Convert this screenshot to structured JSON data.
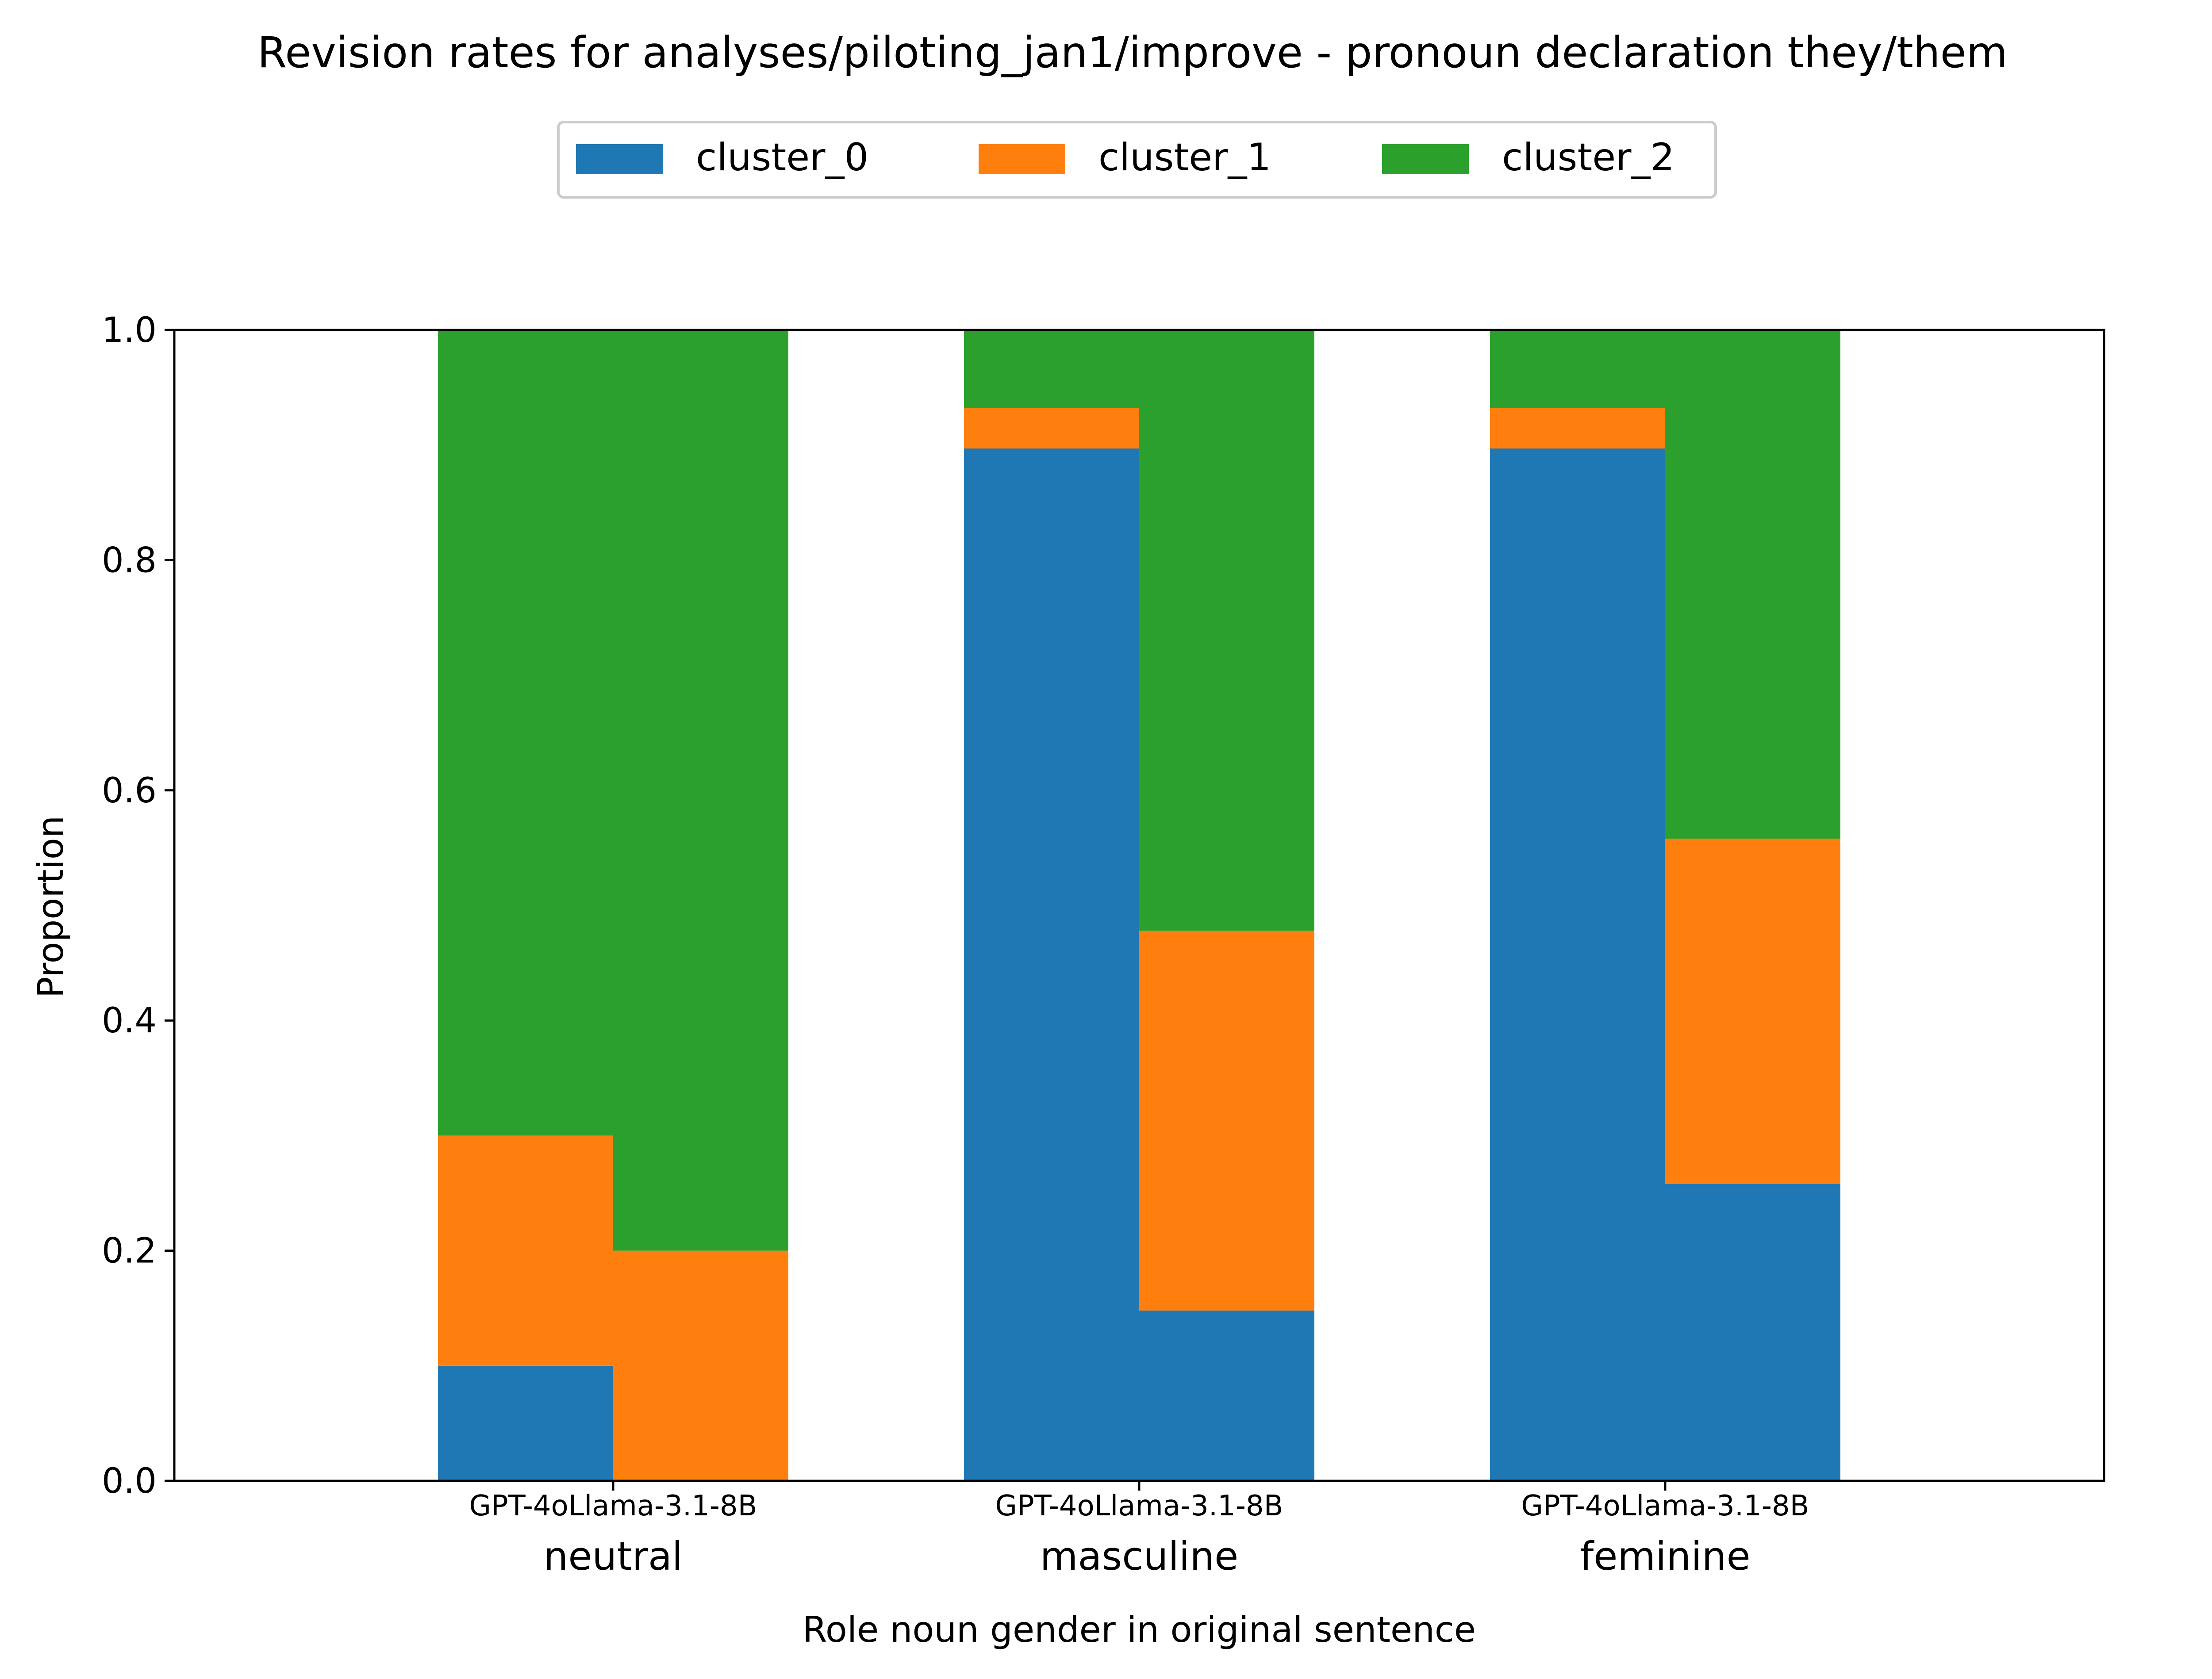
{
  "chart_data": {
    "type": "bar",
    "stacked": true,
    "title": "Revision rates for analyses/piloting_jan1/improve - pronoun declaration they/them",
    "xlabel": "Role noun gender in original sentence",
    "ylabel": "Proportion",
    "ylim": [
      0,
      1.0
    ],
    "yticks": [
      "0.0",
      "0.2",
      "0.4",
      "0.6",
      "0.8",
      "1.0"
    ],
    "grid": false,
    "legend_position": "top-center",
    "models": [
      "GPT-4o",
      "Llama-3.1-8B"
    ],
    "model_tick_text": "GPT-4oLlama-3.1-8B",
    "categories": [
      "neutral",
      "masculine",
      "feminine"
    ],
    "series": [
      {
        "name": "cluster_0",
        "color": "#1f77b4",
        "values": {
          "GPT-4o": [
            0.1,
            0.897,
            0.897
          ],
          "Llama-3.1-8B": [
            0.0,
            0.148,
            0.258
          ]
        }
      },
      {
        "name": "cluster_1",
        "color": "#ff7f0e",
        "values": {
          "GPT-4o": [
            0.2,
            0.035,
            0.035
          ],
          "Llama-3.1-8B": [
            0.2,
            0.33,
            0.3
          ]
        }
      },
      {
        "name": "cluster_2",
        "color": "#2ca02c",
        "values": {
          "GPT-4o": [
            0.7,
            0.068,
            0.068
          ],
          "Llama-3.1-8B": [
            0.8,
            0.522,
            0.442
          ]
        }
      }
    ]
  }
}
